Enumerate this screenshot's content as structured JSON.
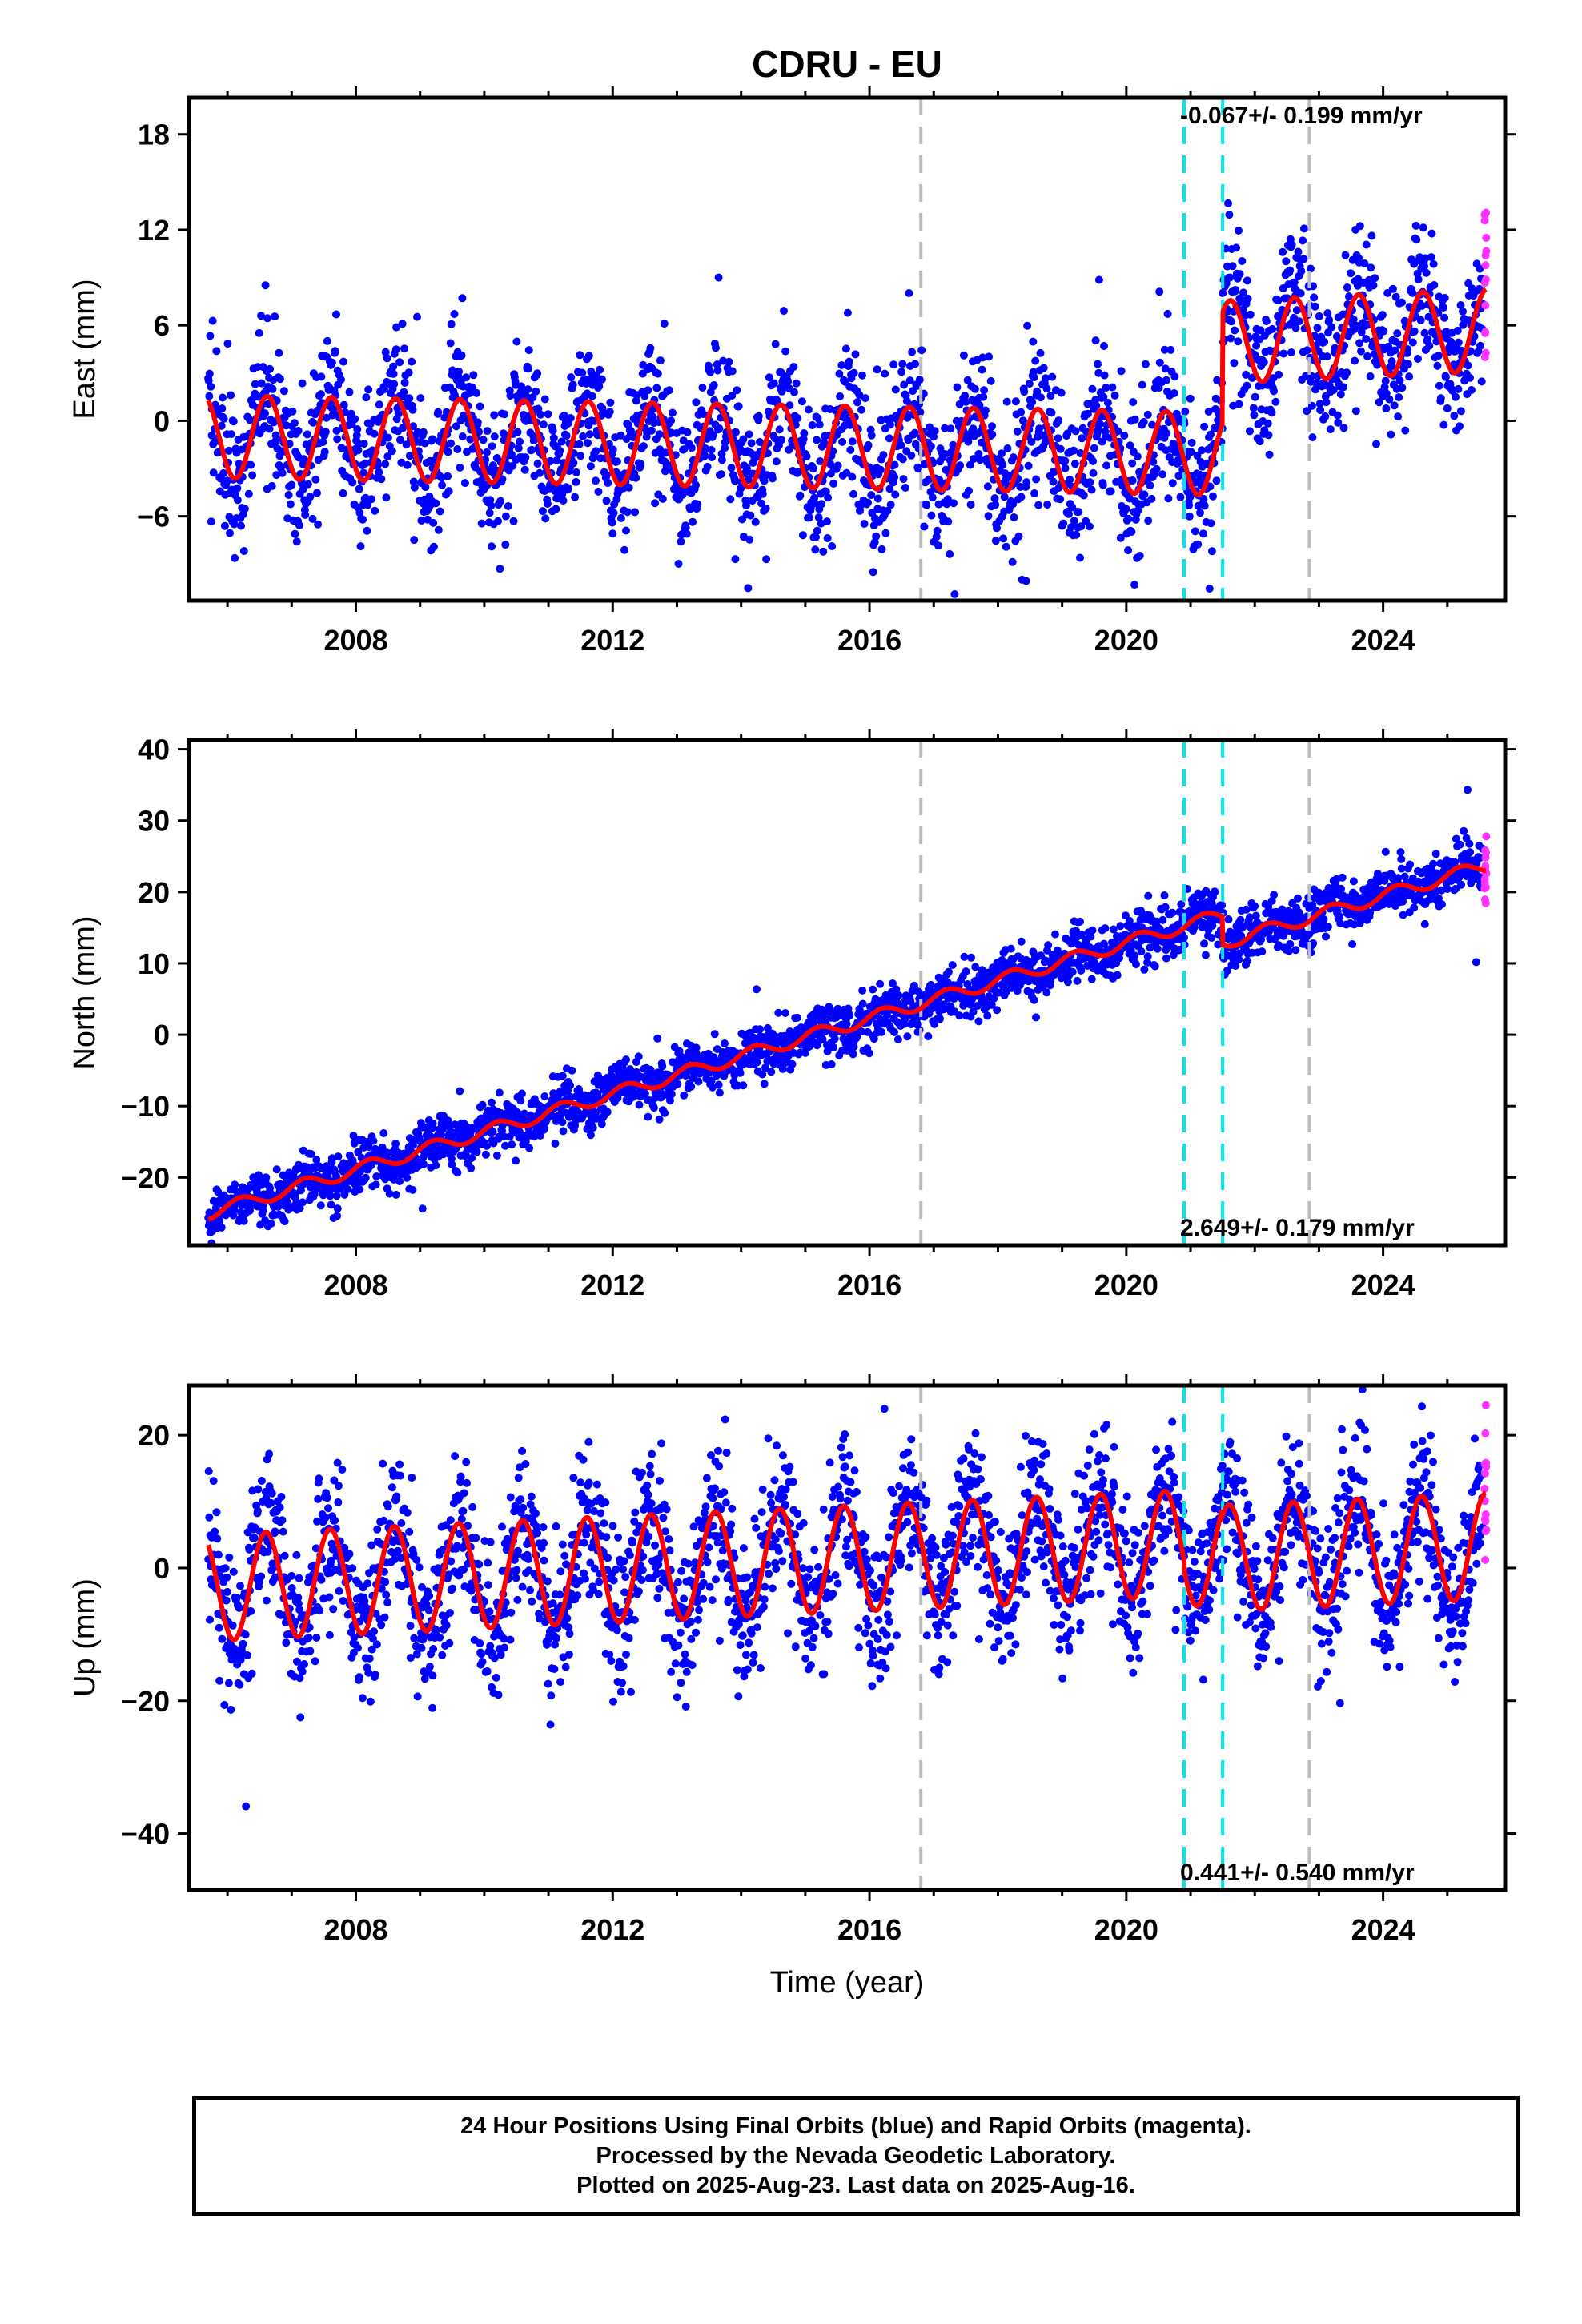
{
  "title": "CDRU - EU",
  "x_axis_label": "Time (year)",
  "footer": {
    "line1": "24 Hour Positions Using Final Orbits (blue) and Rapid Orbits (magenta).",
    "line2": "Processed by the Nevada Geodetic Laboratory.",
    "line3": "Plotted on 2025-Aug-23. Last data on 2025-Aug-16."
  },
  "chart_data": [
    {
      "type": "scatter",
      "ylabel": "East (mm)",
      "xlim": [
        2005.4,
        2025.9
      ],
      "ylim": [
        -11.3,
        20.3
      ],
      "x_ticks": [
        2008,
        2012,
        2016,
        2020,
        2024
      ],
      "y_ticks": [
        -6,
        0,
        6,
        12,
        18
      ],
      "rate_text": "-0.067+/- 0.199 mm/yr",
      "rate_position": "top-right",
      "series_colors": {
        "final": "#0000ff",
        "rapid": "#ff33ff",
        "model": "#ff0000"
      },
      "equipment_change_lines": [
        {
          "x": 2016.8,
          "color": "#bbbbbb"
        },
        {
          "x": 2022.85,
          "color": "#bbbbbb"
        }
      ],
      "earthquake_lines": [
        {
          "x": 2020.9,
          "color": "#00e5ee"
        },
        {
          "x": 2021.5,
          "color": "#00e5ee"
        }
      ],
      "model": {
        "slope": -0.067,
        "x_ref": 2005.7,
        "y_ref": -1.0,
        "annual_amplitude": 2.6,
        "peak_phase": 0.62,
        "offsets": [
          {
            "x": 2021.5,
            "value": 7.0
          }
        ],
        "post_offset_rates": [
          {
            "x": 2021.5,
            "rate": 0.25
          }
        ]
      },
      "scatter_sigma": 2.3,
      "x_points": [
        2005.7,
        2008.0,
        2012.0,
        2016.0,
        2020.0,
        2021.5,
        2024.0,
        2025.6
      ],
      "y_points": [
        -1.0,
        2.0,
        -1.5,
        -1.0,
        -0.5,
        5.0,
        5.5,
        8.0
      ]
    },
    {
      "type": "scatter",
      "ylabel": "North (mm)",
      "xlim": [
        2005.4,
        2025.9
      ],
      "ylim": [
        -29.5,
        41.3
      ],
      "x_ticks": [
        2008,
        2012,
        2016,
        2020,
        2024
      ],
      "y_ticks": [
        -20,
        -10,
        0,
        10,
        20,
        30,
        40
      ],
      "rate_text": "2.649+/- 0.179 mm/yr",
      "rate_position": "bottom-right",
      "series_colors": {
        "final": "#0000ff",
        "rapid": "#ff33ff",
        "model": "#ff0000"
      },
      "equipment_change_lines": [
        {
          "x": 2016.8,
          "color": "#bbbbbb"
        },
        {
          "x": 2022.85,
          "color": "#bbbbbb"
        }
      ],
      "earthquake_lines": [
        {
          "x": 2020.9,
          "color": "#00e5ee"
        },
        {
          "x": 2021.5,
          "color": "#00e5ee"
        }
      ],
      "model": {
        "slope": 2.649,
        "x_ref": 2005.7,
        "y_ref": -25.0,
        "annual_amplitude": 0.9,
        "peak_phase": 0.2,
        "offsets": [
          {
            "x": 2021.5,
            "value": -4.0
          }
        ],
        "post_offset_rates": []
      },
      "scatter_sigma": 1.8,
      "x_points": [
        2005.7,
        2008.0,
        2012.0,
        2016.0,
        2020.0,
        2021.4,
        2021.6,
        2024.0,
        2025.6
      ],
      "y_points": [
        -25.0,
        -18.0,
        -8.0,
        3.0,
        15.0,
        18.0,
        14.0,
        21.0,
        25.0
      ]
    },
    {
      "type": "scatter",
      "ylabel": "Up (mm)",
      "xlim": [
        2005.4,
        2025.9
      ],
      "ylim": [
        -48.5,
        27.5
      ],
      "x_ticks": [
        2008,
        2012,
        2016,
        2020,
        2024
      ],
      "y_ticks": [
        -40,
        -20,
        0,
        20
      ],
      "rate_text": "0.441+/- 0.540 mm/yr",
      "rate_position": "bottom-right",
      "series_colors": {
        "final": "#0000ff",
        "rapid": "#ff33ff",
        "model": "#ff0000"
      },
      "equipment_change_lines": [
        {
          "x": 2016.8,
          "color": "#bbbbbb"
        },
        {
          "x": 2022.85,
          "color": "#bbbbbb"
        }
      ],
      "earthquake_lines": [
        {
          "x": 2020.9,
          "color": "#00e5ee"
        },
        {
          "x": 2021.5,
          "color": "#00e5ee"
        }
      ],
      "model": {
        "slope": 0.441,
        "x_ref": 2005.7,
        "y_ref": -3.0,
        "annual_amplitude": 8.0,
        "peak_phase": 0.6,
        "offsets": [
          {
            "x": 2020.9,
            "value": -1.5
          },
          {
            "x": 2021.5,
            "value": -1.0
          }
        ],
        "post_offset_rates": []
      },
      "scatter_sigma": 5.5,
      "x_points": [
        2005.7,
        2008.0,
        2012.0,
        2016.0,
        2020.0,
        2024.0,
        2025.6
      ],
      "y_points": [
        -2.0,
        -1.0,
        2.0,
        3.0,
        2.0,
        0.0,
        3.0
      ]
    }
  ]
}
